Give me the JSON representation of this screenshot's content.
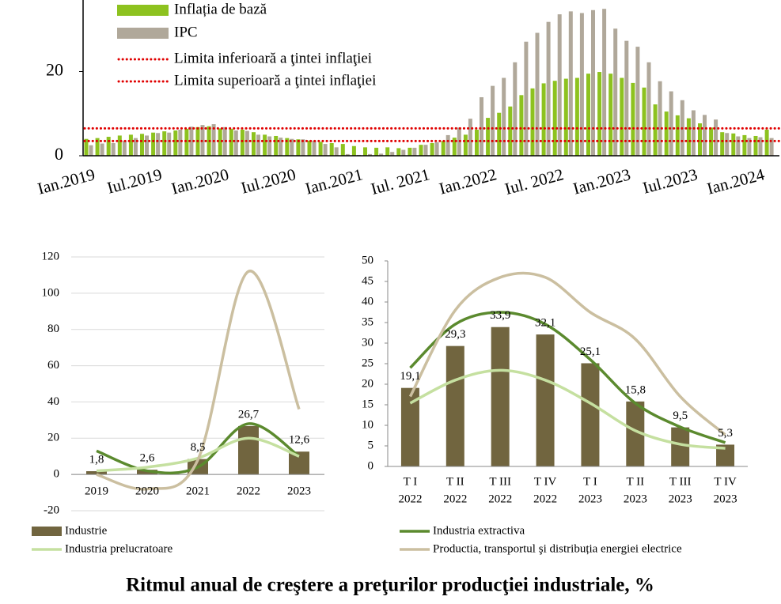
{
  "title": "Ritmul anual de creştere a preţurilor producţiei industriale, %",
  "chart_data": [
    {
      "type": "bar",
      "categories": [
        "Ian.2019",
        null,
        null,
        null,
        null,
        null,
        "Iul.2019",
        null,
        null,
        null,
        null,
        null,
        "Ian.2020",
        null,
        null,
        null,
        null,
        null,
        "Iul.2020",
        null,
        null,
        null,
        null,
        null,
        "Ian.2021",
        null,
        null,
        null,
        null,
        null,
        "Iul. 2021",
        null,
        null,
        null,
        null,
        null,
        "Ian.2022",
        null,
        null,
        null,
        null,
        null,
        "Iul. 2022",
        null,
        null,
        null,
        null,
        null,
        "Ian.2023",
        null,
        null,
        null,
        null,
        null,
        "Iul.2023",
        null,
        null,
        null,
        null,
        null,
        "Ian.2024",
        null
      ],
      "series": [
        {
          "name": "Inflația de bază",
          "color": "#8dc21f",
          "values": [
            4.0,
            4.2,
            4.5,
            4.8,
            5.0,
            5.2,
            5.5,
            5.8,
            6.0,
            6.4,
            6.8,
            7.0,
            6.5,
            6.4,
            6.2,
            5.6,
            5.0,
            4.7,
            4.2,
            3.9,
            3.6,
            3.3,
            3.0,
            2.8,
            2.3,
            2.0,
            1.9,
            2.0,
            1.8,
            1.9,
            2.6,
            3.0,
            3.5,
            4.3,
            5.0,
            6.2,
            9.0,
            10.2,
            11.7,
            14.4,
            16.0,
            17.2,
            17.8,
            18.3,
            18.5,
            19.5,
            19.9,
            19.5,
            18.5,
            17.3,
            16.2,
            12.2,
            10.5,
            9.6,
            8.9,
            7.7,
            6.7,
            5.6,
            5.3,
            4.9,
            4.7,
            6.2
          ]
        },
        {
          "name": "IPC",
          "color": "#b0a89a",
          "values": [
            2.5,
            2.9,
            3.0,
            3.5,
            4.2,
            4.8,
            5.4,
            5.5,
            6.2,
            6.9,
            7.3,
            7.5,
            6.8,
            6.0,
            5.9,
            5.0,
            4.6,
            4.3,
            4.0,
            3.9,
            3.6,
            2.8,
            2.0,
            0.4,
            0.2,
            0.4,
            0.5,
            0.9,
            1.4,
            1.9,
            2.6,
            3.2,
            4.9,
            6.7,
            8.8,
            13.9,
            16.6,
            18.5,
            22.2,
            27.1,
            29.2,
            31.8,
            33.6,
            34.3,
            33.9,
            34.6,
            34.9,
            30.2,
            27.3,
            25.9,
            22.2,
            17.7,
            15.3,
            13.2,
            10.8,
            9.7,
            8.6,
            5.4,
            4.6,
            4.2,
            4.4,
            4.2
          ]
        }
      ],
      "lines": [
        {
          "name": "Limita inferioară a ţintei inflaţiei",
          "color": "#e00000",
          "value": 3.5
        },
        {
          "name": "Limita superioară a ţintei inflaţiei",
          "color": "#e00000",
          "value": 6.5
        }
      ],
      "ylim": [
        0,
        37
      ],
      "yticks": [
        0,
        20
      ]
    },
    {
      "type": "combo",
      "categories": [
        "2019",
        "2020",
        "2021",
        "2022",
        "2023"
      ],
      "series": [
        {
          "name": "Industrie",
          "type": "bar",
          "color": "#71653f",
          "values": [
            1.8,
            2.6,
            8.5,
            26.7,
            12.6
          ],
          "value_labels": [
            "1,8",
            "2,6",
            "8,5",
            "26,7",
            "12,6"
          ]
        },
        {
          "name": "Industria extractiva",
          "type": "line",
          "color": "#5b8a2e",
          "values": [
            13,
            2,
            4,
            28,
            10
          ]
        },
        {
          "name": "Industria prelucratoare",
          "type": "line",
          "color": "#c5e0a0",
          "values": [
            2,
            4,
            9,
            20,
            10
          ]
        },
        {
          "name": "Productia, transportul şi distribuția energiei electrice",
          "type": "line",
          "color": "#cbbfa0",
          "values": [
            0,
            -8,
            8,
            112,
            36
          ]
        }
      ],
      "ylim": [
        -20,
        120
      ],
      "yticks": [
        -20,
        0,
        20,
        40,
        60,
        80,
        100,
        120
      ],
      "grid": true
    },
    {
      "type": "combo",
      "categories": [
        [
          "T I",
          "2022"
        ],
        [
          "T II",
          "2022"
        ],
        [
          "T III",
          "2022"
        ],
        [
          "T IV",
          "2022"
        ],
        [
          "T I",
          "2023"
        ],
        [
          "T II",
          "2023"
        ],
        [
          "T III",
          "2023"
        ],
        [
          "T IV",
          "2023"
        ]
      ],
      "series": [
        {
          "name": "Industrie",
          "type": "bar",
          "color": "#71653f",
          "values": [
            19.1,
            29.3,
            33.9,
            32.1,
            25.1,
            15.8,
            9.5,
            5.3
          ],
          "value_labels": [
            "19,1",
            "29,3",
            "33,9",
            "32,1",
            "25,1",
            "15,8",
            "9,5",
            "5,3"
          ]
        },
        {
          "name": "Industria extractiva",
          "type": "line",
          "color": "#5b8a2e",
          "values": [
            24,
            34.6,
            37.5,
            34.6,
            26,
            15.4,
            9.6,
            5.8
          ]
        },
        {
          "name": "Industria prelucratoare",
          "type": "line",
          "color": "#c5e0a0",
          "values": [
            15.4,
            21,
            23.4,
            21,
            15.4,
            8.7,
            5.4,
            4.4
          ]
        },
        {
          "name": "Productia, transportul şi distribuția energiei electrice",
          "type": "line",
          "color": "#cbbfa0",
          "values": [
            17,
            38,
            46,
            46,
            37.5,
            31,
            17,
            7.7
          ]
        }
      ],
      "ylim": [
        0,
        50
      ],
      "yticks": [
        0,
        5,
        10,
        15,
        20,
        25,
        30,
        35,
        40,
        45,
        50
      ],
      "grid": false
    }
  ]
}
